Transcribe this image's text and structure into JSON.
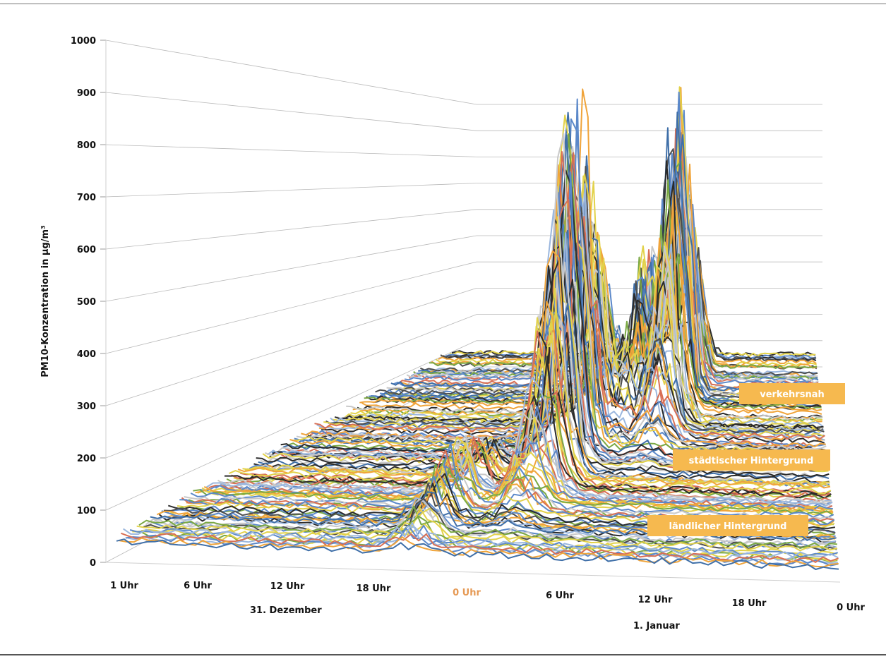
{
  "chart_data": {
    "type": "line",
    "title": "",
    "ylabel": "PM10-Konzentration in µg/m³",
    "ylim": [
      0,
      1000
    ],
    "yticks": [
      "0",
      "100",
      "200",
      "300",
      "400",
      "500",
      "600",
      "700",
      "800",
      "900",
      "1000"
    ],
    "xticks": [
      "1 Uhr",
      "6 Uhr",
      "12 Uhr",
      "18 Uhr",
      "0 Uhr",
      "6 Uhr",
      "12 Uhr",
      "18 Uhr",
      "0 Uhr"
    ],
    "x_hours": [
      1,
      6,
      12,
      18,
      24,
      30,
      36,
      42,
      48
    ],
    "day_labels": [
      "31. Dezember",
      "1. Januar"
    ],
    "grid": true,
    "depth_categories": [
      "ländlicher Hintergrund",
      "städtischer Hintergrund",
      "verkehrsnah"
    ],
    "annotations": [
      {
        "text": "verkehrsnah"
      },
      {
        "text": "städtischer Hintergrund"
      },
      {
        "text": "ländlicher Hintergrund"
      }
    ],
    "peaks": [
      {
        "hour": 25,
        "value": 840,
        "series_group": "städtischer Hintergrund"
      },
      {
        "hour": 33,
        "value": 770,
        "series_group": "verkehrsnah"
      },
      {
        "hour": 26,
        "value": 590,
        "series_group": "städtischer Hintergrund"
      },
      {
        "hour": 29,
        "value": 570,
        "series_group": "verkehrsnah"
      },
      {
        "hour": 32,
        "value": 720,
        "series_group": "verkehrsnah"
      },
      {
        "hour": 20,
        "value": 200,
        "series_group": "ländlicher Hintergrund"
      }
    ],
    "typical_level": 30
  },
  "colors": {
    "annotation_bg": "#f6b94f",
    "midnight_label": "#e69a55",
    "series_palette": [
      "#2b2b2b",
      "#5b88c9",
      "#9bb7de",
      "#f0a43a",
      "#7aa843",
      "#c9c9c9",
      "#e2d24a",
      "#d86f55",
      "#3f6fa8",
      "#4e4e4e"
    ]
  }
}
